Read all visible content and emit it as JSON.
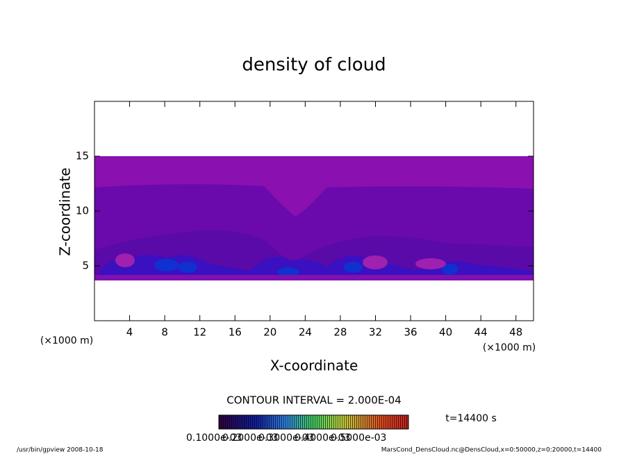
{
  "chart_data": {
    "type": "contour",
    "title": "density of cloud",
    "x_label": "X-coordinate",
    "y_label": "Z-coordinate",
    "x_unit": "(×1000 m)",
    "xlim": [
      0,
      50
    ],
    "ylim": [
      0,
      20
    ],
    "xticks": [
      4,
      8,
      12,
      16,
      20,
      24,
      28,
      32,
      36,
      40,
      44,
      48
    ],
    "yticks": [
      5,
      10,
      15
    ],
    "contour_interval": "CONTOUR INTERVAL = 2.000E-04",
    "time_label": "t=14400 s",
    "colorbar_labels": [
      "0.1000e-03",
      "0.2000e-03",
      "0.3000e-03",
      "0.4000e-03",
      "0.5000e-03"
    ]
  },
  "footer": {
    "left": "/usr/bin/gpview   2008-10-18",
    "right": "MarsCond_DensCloud.nc@DensCloud,x=0:50000,z=0:20000,t=14400"
  }
}
